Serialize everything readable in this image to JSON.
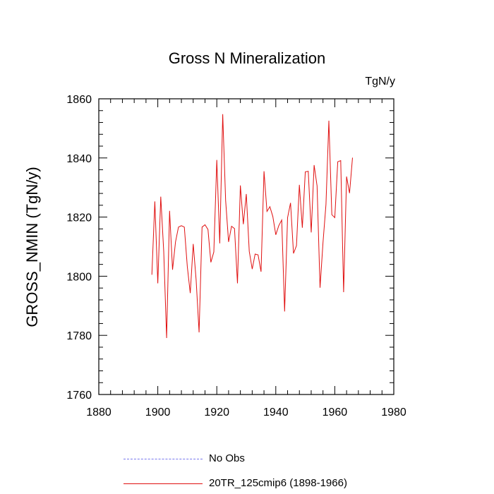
{
  "chart_data": {
    "type": "line",
    "title": "Gross N Mineralization",
    "units": "TgN/y",
    "ylabel": "GROSS_NMIN  (TgN/y)",
    "xlabel": "",
    "xlim": [
      1880,
      1980
    ],
    "ylim": [
      1760,
      1860
    ],
    "xticks": [
      1880,
      1900,
      1920,
      1940,
      1960,
      1980
    ],
    "yticks": [
      1760,
      1780,
      1800,
      1820,
      1840,
      1860
    ],
    "series": [
      {
        "name": "20TR_125cmip6 (1898-1966)",
        "color": "#e01010",
        "style": "solid",
        "x": [
          1898,
          1899,
          1900,
          1901,
          1902,
          1903,
          1904,
          1905,
          1906,
          1907,
          1908,
          1909,
          1910,
          1911,
          1912,
          1913,
          1914,
          1915,
          1916,
          1917,
          1918,
          1919,
          1920,
          1921,
          1922,
          1923,
          1924,
          1925,
          1926,
          1927,
          1928,
          1929,
          1930,
          1931,
          1932,
          1933,
          1934,
          1935,
          1936,
          1937,
          1938,
          1939,
          1940,
          1941,
          1942,
          1943,
          1944,
          1945,
          1946,
          1947,
          1948,
          1949,
          1950,
          1951,
          1952,
          1953,
          1954,
          1955,
          1956,
          1957,
          1958,
          1959,
          1960,
          1961,
          1962,
          1963,
          1964,
          1965,
          1966
        ],
        "values": [
          1800.5,
          1825.3,
          1797.6,
          1826.9,
          1808.4,
          1779.1,
          1822.1,
          1802.2,
          1811.6,
          1816.6,
          1817.1,
          1816.6,
          1803.3,
          1794.3,
          1810.9,
          1798.8,
          1781.0,
          1816.6,
          1817.4,
          1815.8,
          1804.7,
          1808.2,
          1839.3,
          1811.1,
          1854.8,
          1825.7,
          1811.6,
          1816.9,
          1816.1,
          1797.6,
          1830.7,
          1817.6,
          1827.8,
          1808.4,
          1802.4,
          1807.5,
          1807.2,
          1801.5,
          1835.5,
          1821.9,
          1823.5,
          1820.2,
          1814.0,
          1817.1,
          1819.0,
          1788.1,
          1819.8,
          1824.8,
          1807.7,
          1810.3,
          1830.9,
          1816.4,
          1835.3,
          1835.5,
          1814.8,
          1837.6,
          1830.5,
          1796.1,
          1811.4,
          1824.3,
          1852.6,
          1820.8,
          1819.8,
          1838.7,
          1839.1,
          1794.6,
          1833.7,
          1828.1,
          1840.1
        ]
      },
      {
        "name": "No Obs",
        "color": "#7777ee",
        "style": "dashed",
        "x": [],
        "values": []
      }
    ],
    "legend": "bottom"
  }
}
